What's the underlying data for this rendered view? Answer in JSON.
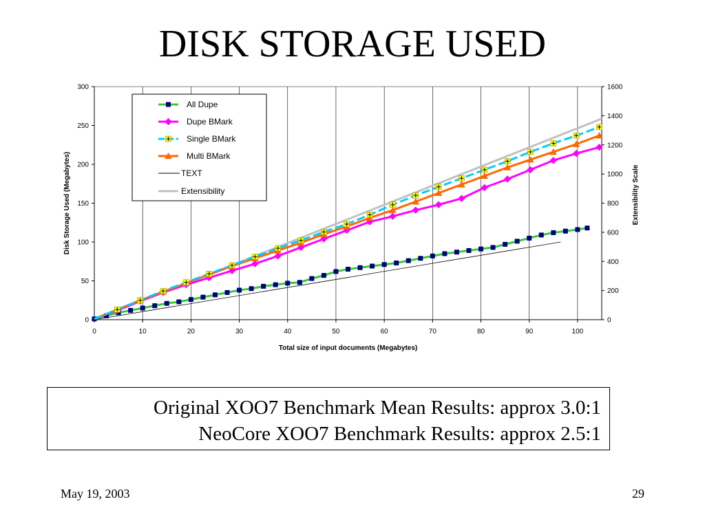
{
  "slide": {
    "title": "DISK STORAGE USED",
    "results": [
      "Original XOO7 Benchmark Mean Results: approx 3.0:1",
      "NeoCore XOO7 Benchmark Results: approx 2.5:1"
    ],
    "date": "May 19, 2003",
    "page_number": "29"
  },
  "chart_data": {
    "type": "line",
    "title": "",
    "xlabel": "Total size of input documents (Megabytes)",
    "ylabel": "Disk Storage Used (Megabytes)",
    "y2label": "Extensibility Scale",
    "xlim": [
      0,
      105
    ],
    "ylim": [
      0,
      300
    ],
    "y2lim": [
      0,
      1600
    ],
    "xticks": [
      "0",
      "10",
      "20",
      "30",
      "40",
      "50",
      "60",
      "70",
      "80",
      "90",
      "100"
    ],
    "yticks": [
      "0",
      "50",
      "100",
      "150",
      "200",
      "250",
      "300"
    ],
    "y2ticks": [
      "0",
      "200",
      "400",
      "600",
      "800",
      "1000",
      "1200",
      "1400",
      "1600"
    ],
    "grid": "vertical",
    "legend_position": "top-left",
    "series": [
      {
        "name": "All Dupe",
        "color": "#33cc33",
        "marker_color": "#000080",
        "marker": "square",
        "axis": "left",
        "x": [
          0,
          2.5,
          5,
          7.5,
          10,
          12.5,
          15,
          17.5,
          20,
          22.5,
          25,
          27.5,
          30,
          32.5,
          35,
          37.5,
          40,
          42.5,
          45,
          47.5,
          50,
          52.5,
          55,
          57.5,
          60,
          62.5,
          65,
          67.5,
          70,
          72.5,
          75,
          77.5,
          80,
          82.5,
          85,
          87.5,
          90,
          92.5,
          95,
          97.5,
          100,
          102
        ],
        "y": [
          1,
          5,
          9,
          12,
          15,
          18,
          21,
          23,
          26,
          29,
          32,
          35,
          38,
          40,
          43,
          45,
          47,
          48,
          53,
          57,
          62,
          65,
          67,
          69,
          71,
          73,
          76,
          79,
          82,
          85,
          87,
          89,
          91,
          93,
          97,
          101,
          105,
          109,
          112,
          114,
          116,
          118
        ]
      },
      {
        "name": "Dupe BMark",
        "color": "#ff00ff",
        "marker_color": "#ff00ff",
        "marker": "diamond",
        "axis": "left",
        "x": [
          0,
          4.75,
          9.5,
          14.25,
          19,
          23.75,
          28.5,
          33.25,
          38,
          42.75,
          47.5,
          52.25,
          57,
          61.75,
          66.5,
          71.25,
          76,
          80.75,
          85.5,
          90.25,
          95,
          99.75,
          104.5
        ],
        "y": [
          1,
          12,
          24,
          35,
          45,
          54,
          63,
          72,
          82,
          93,
          104,
          115,
          126,
          133,
          141,
          148,
          156,
          170,
          181,
          193,
          205,
          214,
          222
        ]
      },
      {
        "name": "Single BMark",
        "color": "#00ccff",
        "marker_color": "#ffff00",
        "marker": "plus",
        "axis": "left",
        "x": [
          0,
          4.75,
          9.5,
          14.25,
          19,
          23.75,
          28.5,
          33.25,
          38,
          42.75,
          47.5,
          52.25,
          57,
          61.75,
          66.5,
          71.25,
          76,
          80.75,
          85.5,
          90.25,
          95,
          99.75,
          104.5
        ],
        "y": [
          1,
          13,
          25,
          37,
          48,
          59,
          70,
          81,
          92,
          102,
          113,
          123,
          135,
          148,
          160,
          171,
          182,
          193,
          204,
          216,
          227,
          237,
          248
        ]
      },
      {
        "name": "Multi BMark",
        "color": "#ff6600",
        "marker_color": "#ff6600",
        "marker": "triangle",
        "axis": "left",
        "x": [
          0,
          4.75,
          9.5,
          14.25,
          19,
          23.75,
          28.5,
          33.25,
          38,
          42.75,
          47.5,
          52.25,
          57,
          61.75,
          66.5,
          71.25,
          76,
          80.75,
          85.5,
          90.25,
          95,
          99.75,
          104.5
        ],
        "y": [
          1,
          13,
          25,
          36,
          47,
          58,
          69,
          79,
          89,
          99,
          110,
          120,
          131,
          141,
          152,
          163,
          174,
          185,
          196,
          206,
          216,
          226,
          237
        ]
      },
      {
        "name": "TEXT",
        "color": "#000000",
        "marker_color": "#000000",
        "marker": "none",
        "axis": "left",
        "x": [
          0,
          96.5
        ],
        "y": [
          0,
          100
        ]
      },
      {
        "name": "Extensibility",
        "color": "#c0c0c0",
        "marker_color": "#c0c0c0",
        "marker": "none",
        "axis": "right",
        "x": [
          0,
          105
        ],
        "y": [
          0,
          1380
        ]
      }
    ]
  }
}
